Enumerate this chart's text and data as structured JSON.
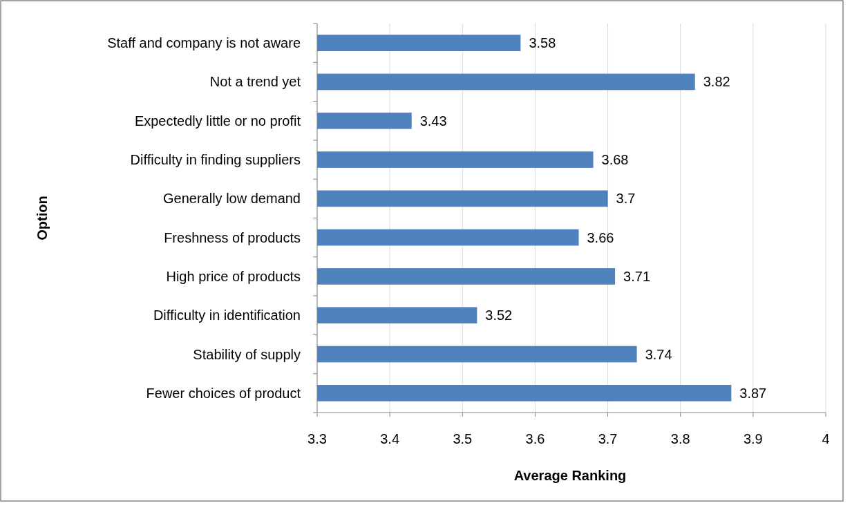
{
  "chart_data": {
    "type": "bar",
    "orientation": "horizontal",
    "categories": [
      "Staff and company is not aware",
      "Not a trend yet",
      "Expectedly little or no profit",
      "Difficulty in finding suppliers",
      "Generally low demand",
      "Freshness of products",
      "High price of products",
      "Difficulty in identification",
      "Stability of supply",
      "Fewer choices of product"
    ],
    "values": [
      3.58,
      3.82,
      3.43,
      3.68,
      3.7,
      3.66,
      3.71,
      3.52,
      3.74,
      3.87
    ],
    "color": "#4f81bd",
    "xlim": [
      3.3,
      4
    ],
    "xticks": [
      3.3,
      3.4,
      3.5,
      3.6,
      3.7,
      3.8,
      3.9,
      4
    ],
    "xlabel": "Average Ranking",
    "ylabel": "Option",
    "grid": "x",
    "data_labels": true
  }
}
